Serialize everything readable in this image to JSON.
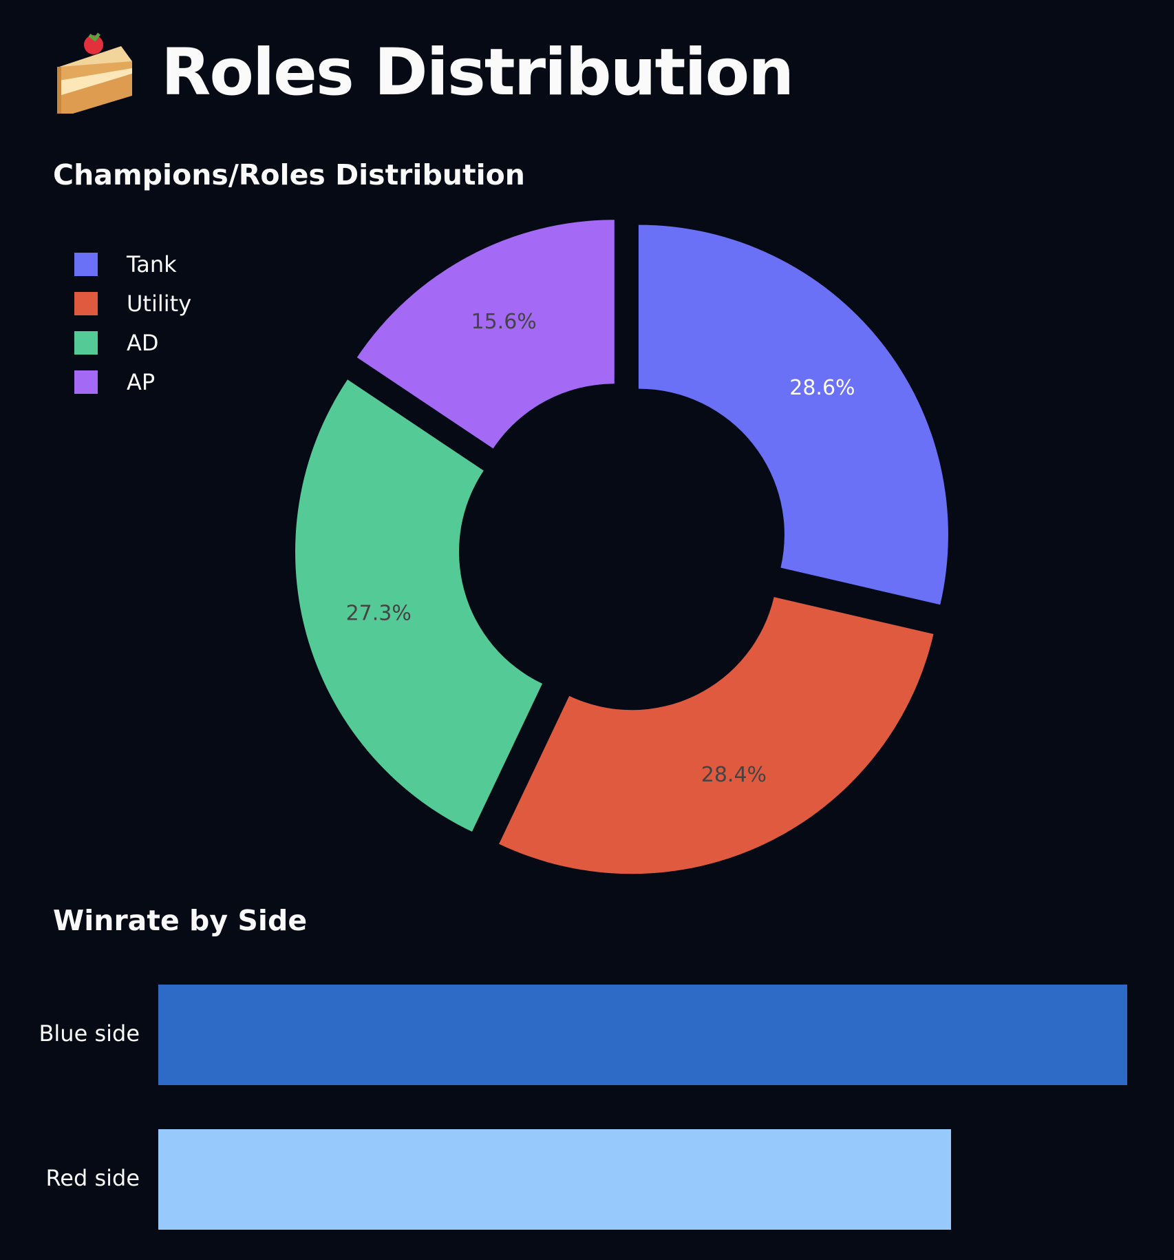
{
  "page": {
    "title": "Roles Distribution",
    "title_icon": "cake-icon"
  },
  "roles_section": {
    "heading": "Champions/Roles Distribution"
  },
  "winrate_section": {
    "heading": "Winrate by Side"
  },
  "chart_data": [
    {
      "type": "pie",
      "style": "donut, exploded slices",
      "title": "Champions/Roles Distribution",
      "legend_position": "top-left",
      "slices": [
        {
          "label": "Tank",
          "value": 28.6,
          "text": "28.6%",
          "color": "#6a71f7",
          "text_color": "#ffffff"
        },
        {
          "label": "Utility",
          "value": 28.4,
          "text": "28.4%",
          "color": "#e05a3f",
          "text_color": "#444444"
        },
        {
          "label": "AD",
          "value": 27.3,
          "text": "27.3%",
          "color": "#54cb97",
          "text_color": "#444444"
        },
        {
          "label": "AP",
          "value": 15.6,
          "text": "15.6%",
          "color": "#a469f5",
          "text_color": "#444444"
        }
      ]
    },
    {
      "type": "bar",
      "orientation": "horizontal",
      "title": "Winrate by Side",
      "categories": [
        "Blue side",
        "Red side"
      ],
      "values": [
        55,
        45
      ],
      "colors": [
        "#2d6bc7",
        "#98c9fd"
      ],
      "grid": false
    }
  ]
}
